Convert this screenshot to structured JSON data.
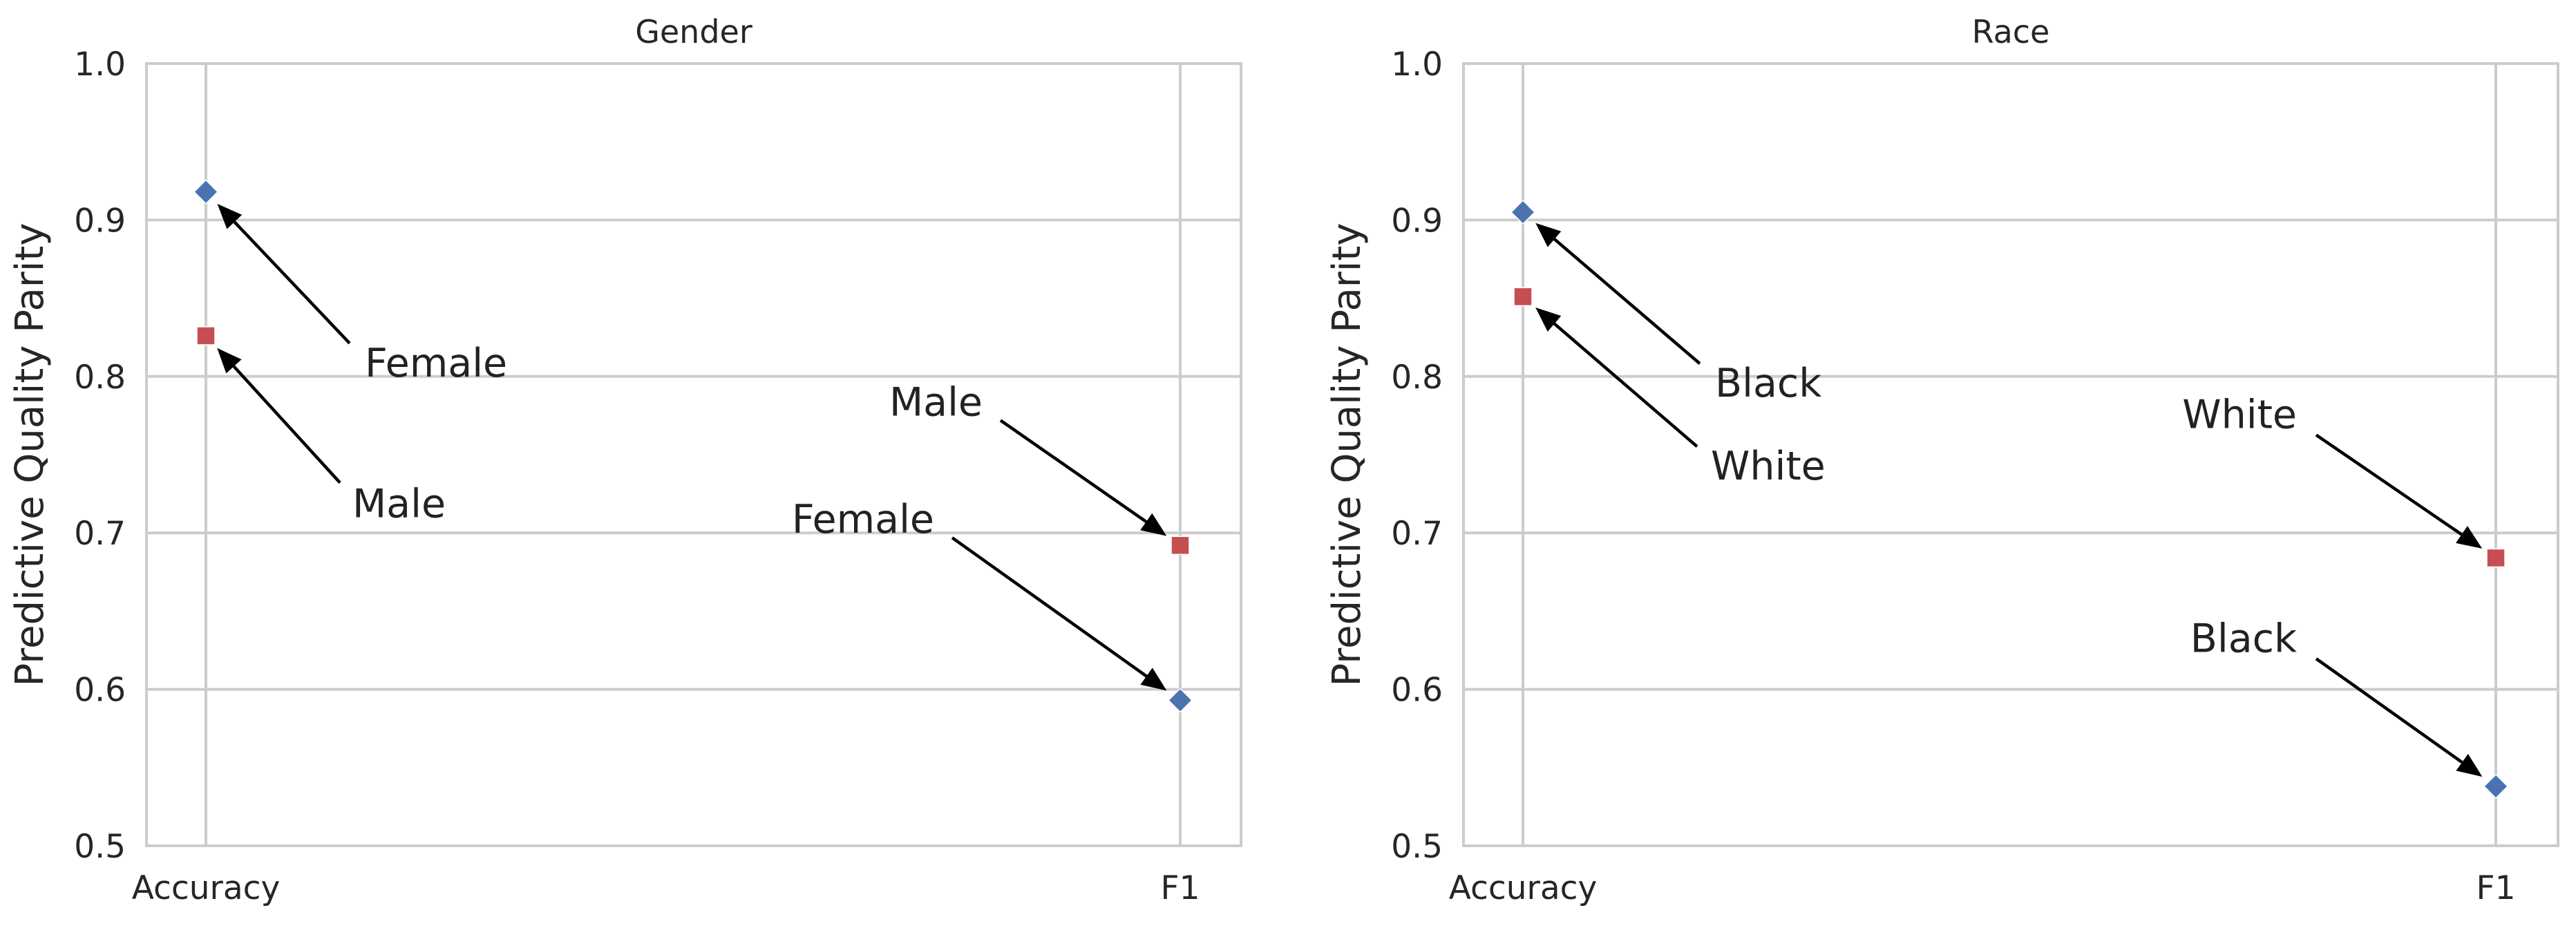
{
  "chart_data": [
    {
      "type": "scatter",
      "title": "Gender",
      "ylabel": "Predictive Quality Parity",
      "xlabel": "",
      "categories": [
        "Accuracy",
        "F1"
      ],
      "ylim": [
        0.5,
        1.0
      ],
      "yticks": [
        "0.5",
        "0.6",
        "0.7",
        "0.8",
        "0.9",
        "1.0"
      ],
      "grid": true,
      "series": [
        {
          "label": "Female",
          "color": "#4c72b0",
          "marker": "diamond",
          "values": [
            0.918,
            0.593
          ]
        },
        {
          "label": "Male",
          "color": "#c44e52",
          "marker": "square",
          "values": [
            0.826,
            0.692
          ]
        }
      ],
      "annotations": [
        {
          "text": "Female",
          "target": [
            "Accuracy",
            0.918
          ],
          "text_pos": [
            "Accuracy",
            0.8
          ]
        },
        {
          "text": "Male",
          "target": [
            "Accuracy",
            0.826
          ],
          "text_pos": [
            "Accuracy",
            0.71
          ]
        },
        {
          "text": "Male",
          "target": [
            "F1",
            0.692
          ],
          "text_pos": [
            "F1",
            0.775
          ]
        },
        {
          "text": "Female",
          "target": [
            "F1",
            0.593
          ],
          "text_pos": [
            "F1",
            0.7
          ]
        }
      ]
    },
    {
      "type": "scatter",
      "title": "Race",
      "ylabel": "Predictive Quality Parity",
      "xlabel": "",
      "categories": [
        "Accuracy",
        "F1"
      ],
      "ylim": [
        0.5,
        1.0
      ],
      "yticks": [
        "0.5",
        "0.6",
        "0.7",
        "0.8",
        "0.9",
        "1.0"
      ],
      "grid": true,
      "series": [
        {
          "label": "Black",
          "color": "#4c72b0",
          "marker": "diamond",
          "values": [
            0.905,
            0.538
          ]
        },
        {
          "label": "White",
          "color": "#c44e52",
          "marker": "square",
          "values": [
            0.851,
            0.684
          ]
        }
      ],
      "annotations": [
        {
          "text": "Black",
          "target": [
            "Accuracy",
            0.905
          ],
          "text_pos": [
            "Accuracy",
            0.787
          ]
        },
        {
          "text": "White",
          "target": [
            "Accuracy",
            0.851
          ],
          "text_pos": [
            "Accuracy",
            0.734
          ]
        },
        {
          "text": "White",
          "target": [
            "F1",
            0.684
          ],
          "text_pos": [
            "F1",
            0.767
          ]
        },
        {
          "text": "Black",
          "target": [
            "F1",
            0.538
          ],
          "text_pos": [
            "F1",
            0.624
          ]
        }
      ]
    }
  ]
}
